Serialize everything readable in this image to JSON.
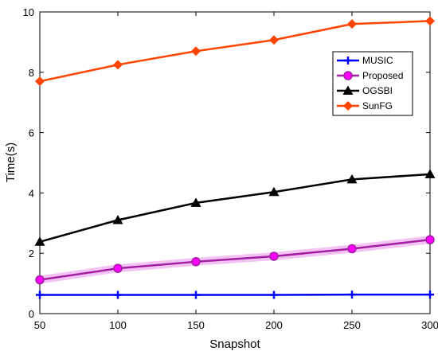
{
  "chart_data": {
    "type": "line",
    "xlabel": "Snapshot",
    "ylabel": "Time(s)",
    "xlim": [
      50,
      300
    ],
    "ylim": [
      0,
      10
    ],
    "x_ticks": [
      "50",
      "100",
      "150",
      "200",
      "250",
      "300"
    ],
    "y_ticks": [
      "0",
      "2",
      "4",
      "6",
      "8",
      "10"
    ],
    "grid": false,
    "legend_position": "top-right",
    "x": [
      50,
      100,
      150,
      200,
      250,
      300
    ],
    "series": [
      {
        "name": "MUSIC",
        "values": [
          0.62,
          0.62,
          0.62,
          0.62,
          0.63,
          0.63
        ],
        "color": "#0000ff",
        "marker": "plus"
      },
      {
        "name": "Proposed",
        "values": [
          1.12,
          1.5,
          1.72,
          1.9,
          2.15,
          2.45
        ],
        "color": "#a020a0",
        "marker_color": "#ff00ff",
        "marker": "circle"
      },
      {
        "name": "OGSBI",
        "values": [
          2.38,
          3.1,
          3.67,
          4.03,
          4.45,
          4.62
        ],
        "color": "#000000",
        "marker": "triangle"
      },
      {
        "name": "SunFG",
        "values": [
          7.7,
          8.25,
          8.7,
          9.07,
          9.6,
          9.7
        ],
        "color": "#ff4500",
        "marker": "diamond"
      }
    ]
  }
}
